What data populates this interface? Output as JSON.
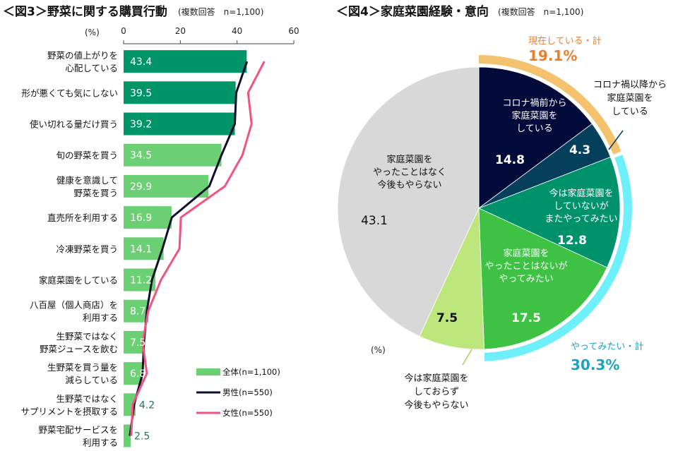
{
  "chart_data": [
    {
      "type": "bar",
      "title": "＜図3＞野菜に関する購買行動",
      "subtitle": "(複数回答　n=1,100)",
      "unit_label": "(%)",
      "xlim": [
        0,
        60
      ],
      "xticks": [
        "0",
        "20",
        "40",
        "60"
      ],
      "orientation": "horizontal",
      "categories": [
        [
          "野菜の値上がりを",
          "心配している"
        ],
        [
          "形が悪くても気にしない"
        ],
        [
          "使い切れる量だけ買う"
        ],
        [
          "旬の野菜を買う"
        ],
        [
          "健康を意識して",
          "野菜を買う"
        ],
        [
          "直売所を利用する"
        ],
        [
          "冷凍野菜を買う"
        ],
        [
          "家庭菜園をしている"
        ],
        [
          "八百屋（個人商店）を",
          "利用する"
        ],
        [
          "生野菜ではなく",
          "野菜ジュースを飲む"
        ],
        [
          "生野菜を買う量を",
          "減らしている"
        ],
        [
          "生野菜ではなく",
          "サプリメントを摂取する"
        ],
        [
          "野菜宅配サービスを",
          "利用する"
        ]
      ],
      "series": [
        {
          "name": "全体(n=1,100)",
          "kind": "bar",
          "values": [
            43.4,
            39.5,
            39.2,
            34.5,
            29.9,
            16.9,
            14.1,
            11.2,
            8.7,
            7.5,
            6.8,
            4.2,
            2.5
          ],
          "labels": [
            "43.4",
            "39.5",
            "39.2",
            "34.5",
            "29.9",
            "16.9",
            "14.1",
            "11.2",
            "8.7",
            "7.5",
            "6.8",
            "4.2",
            "2.5"
          ],
          "highlight_count": 3,
          "color_highlight": "#009469",
          "color": "#6bcf73"
        },
        {
          "name": "男性(n=550)",
          "kind": "line",
          "values": [
            43.5,
            39.7,
            39.2,
            34.5,
            30.2,
            17.0,
            13.7,
            10.0,
            8.2,
            7.2,
            6.7,
            3.7,
            2.2
          ],
          "color": "#0d0f2e"
        },
        {
          "name": "女性(n=550)",
          "kind": "line",
          "values": [
            49.6,
            43.9,
            45.1,
            41.9,
            35.7,
            20.2,
            19.7,
            13.2,
            8.7,
            6.7,
            8.2,
            3.2,
            2.7
          ],
          "color": "#f2547f"
        }
      ],
      "legend_position": "bottom-right"
    },
    {
      "type": "pie",
      "title": "＜図4＞家庭菜園経験・意向",
      "subtitle": "(複数回答　n=1,100)",
      "unit_label": "(%)",
      "slices": [
        {
          "label": [
            "コロナ禍前から",
            "家庭菜園を",
            "している"
          ],
          "value": 14.8,
          "display": "14.8",
          "color": "#020a3a",
          "text_color": "#ffffff"
        },
        {
          "label": [
            "コロナ禍以降から",
            "家庭菜園を",
            "している"
          ],
          "value": 4.3,
          "display": "4.3",
          "color": "#063f5c",
          "text_color": "#ffffff"
        },
        {
          "label": [
            "今は家庭菜園を",
            "していないが",
            "またやってみたい"
          ],
          "value": 12.8,
          "display": "12.8",
          "color": "#00936b",
          "text_color": "#ffffff"
        },
        {
          "label": [
            "家庭菜園を",
            "やったことはないが",
            "やってみたい"
          ],
          "value": 17.5,
          "display": "17.5",
          "color": "#3ec244",
          "text_color": "#ffffff"
        },
        {
          "label": [
            "今は家庭菜園を",
            "しておらず",
            "今後もやらない"
          ],
          "value": 7.5,
          "display": "7.5",
          "color": "#bde77c",
          "text_color": "#111111"
        },
        {
          "label": [
            "家庭菜園を",
            "やったことはなく",
            "今後もやらない"
          ],
          "value": 43.1,
          "display": "43.1",
          "color": "#d8d8d8",
          "text_color": "#111111"
        }
      ],
      "groups": [
        {
          "label": "現在している・計",
          "value": "19.1%",
          "from_slice": 0,
          "to_slice": 1,
          "color": "#f4c16c",
          "text_color": "#ee7d2a"
        },
        {
          "label": "やってみたい・計",
          "value": "30.3%",
          "from_slice": 2,
          "to_slice": 3,
          "color": "#6ef0fb",
          "text_color": "#18a5c4"
        }
      ],
      "start_angle": "12 o'clock",
      "direction": "clockwise"
    }
  ]
}
